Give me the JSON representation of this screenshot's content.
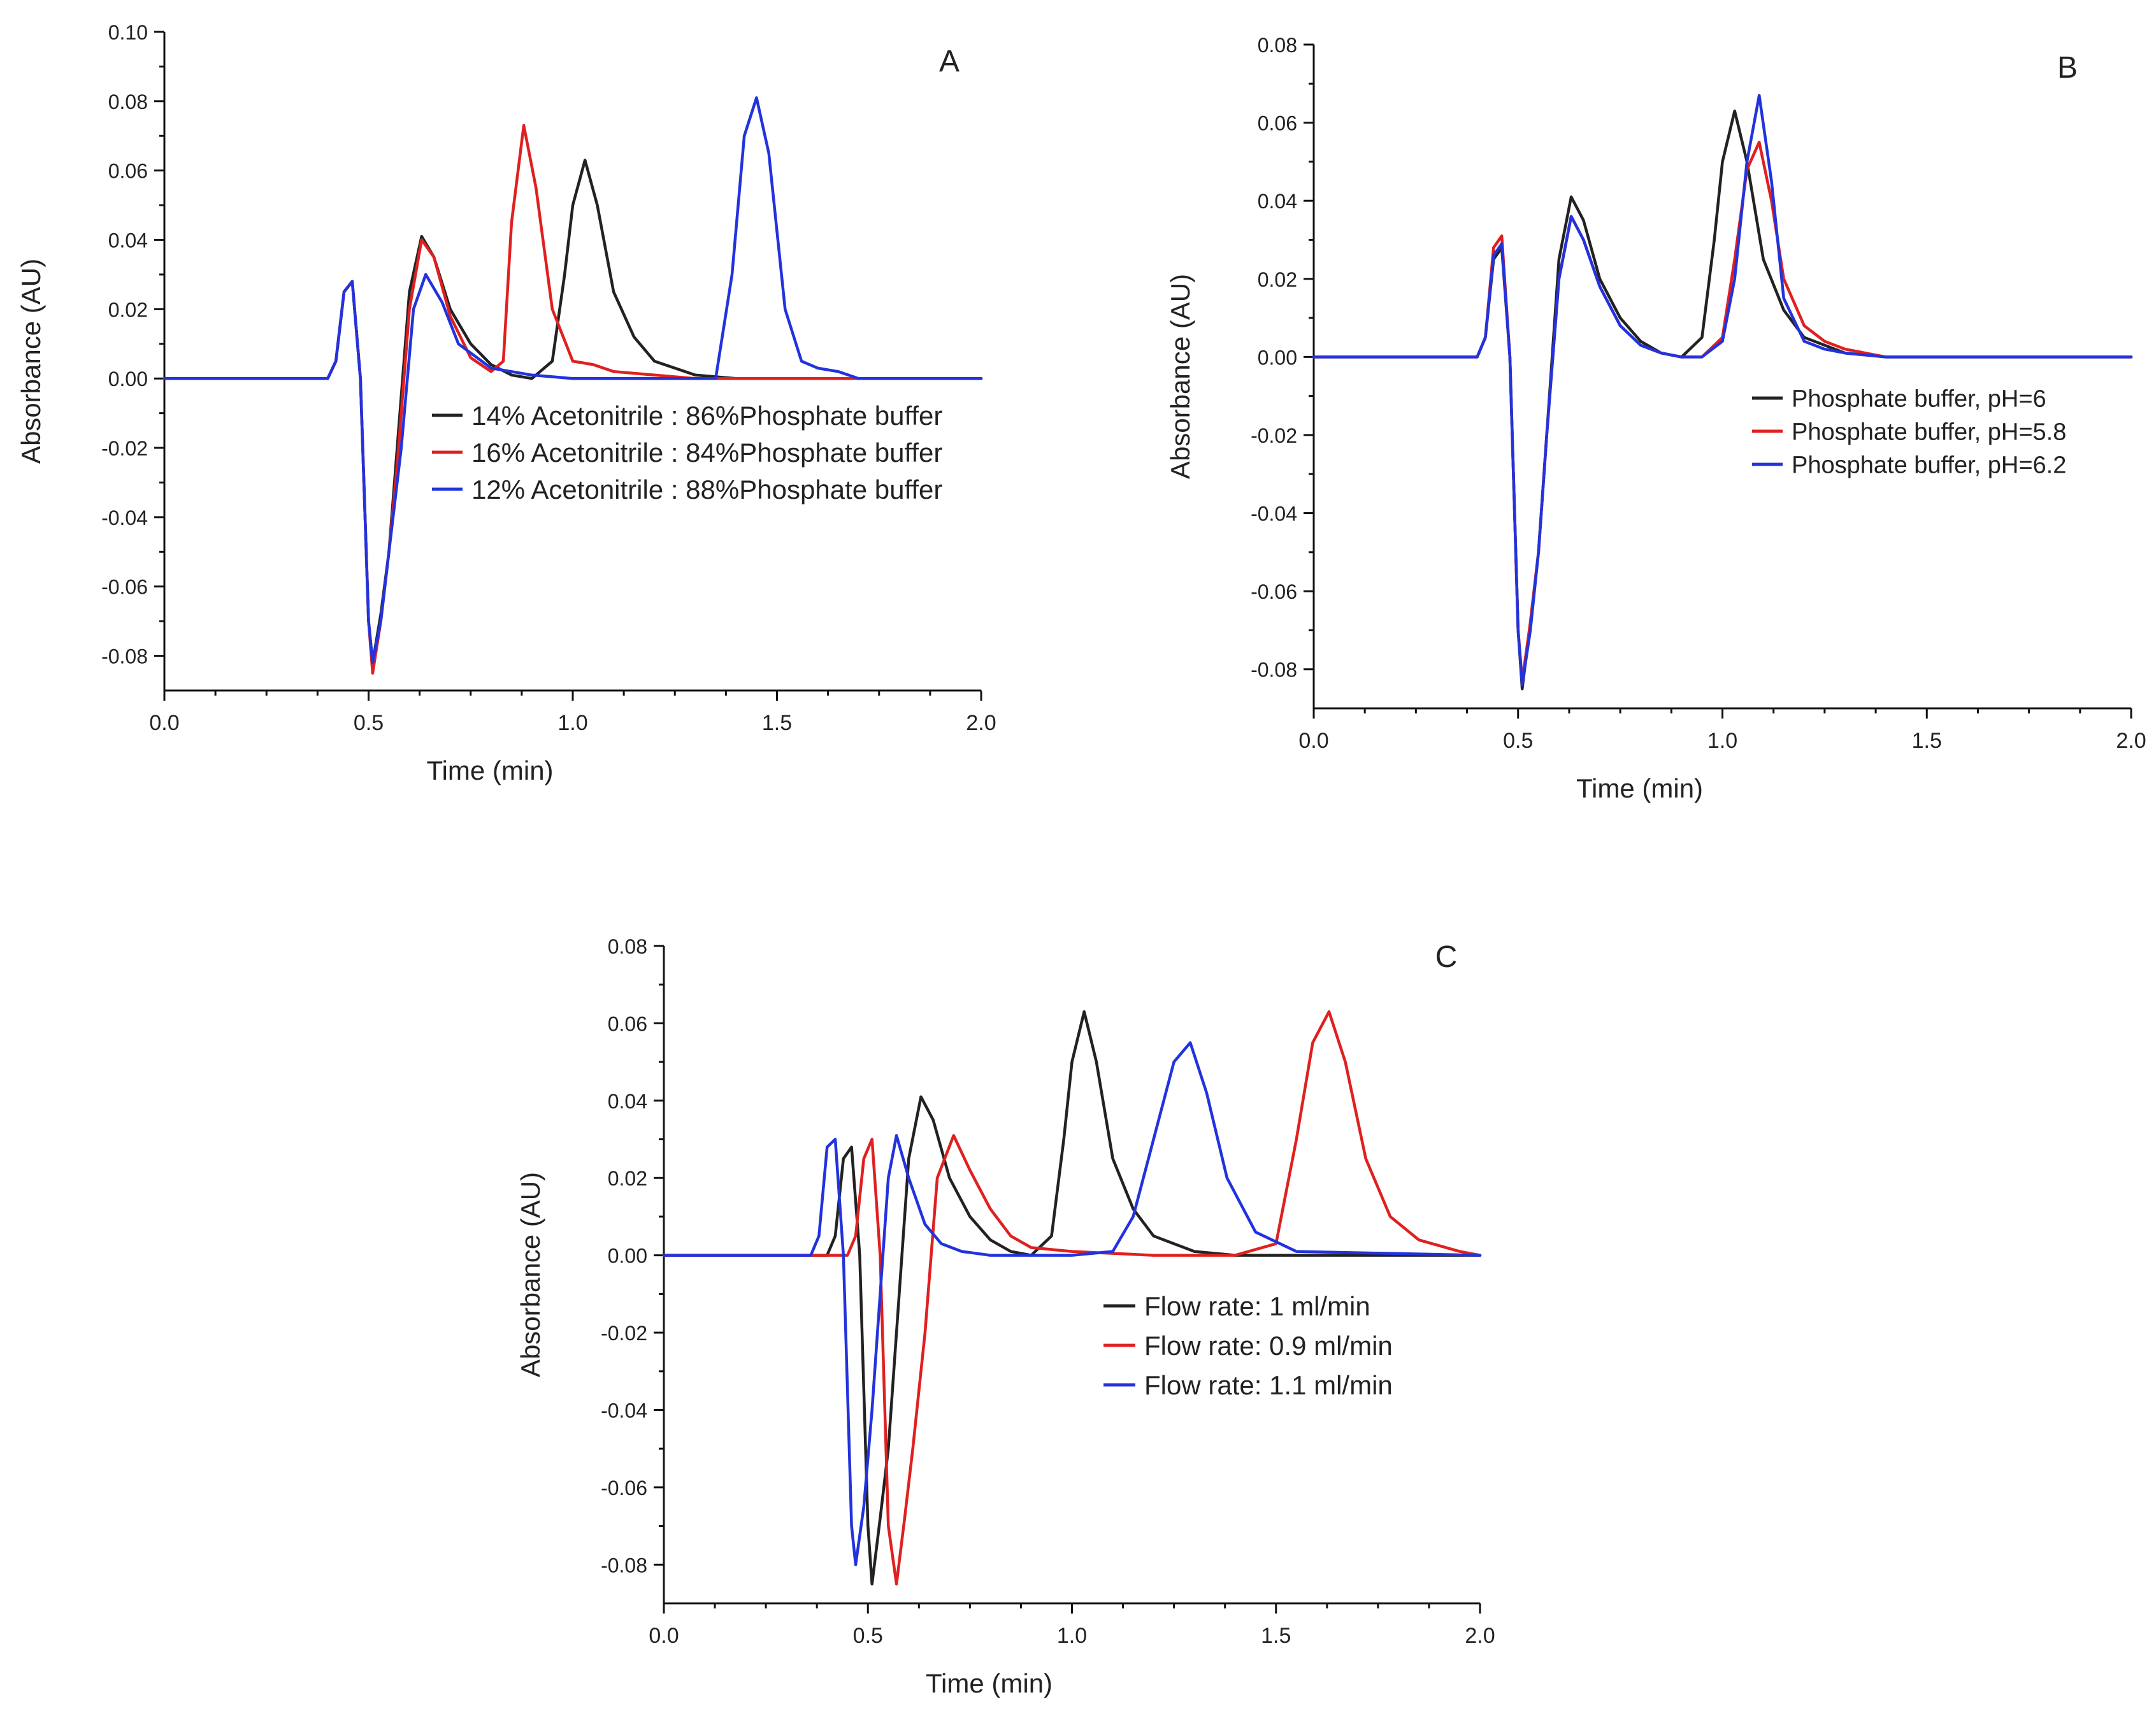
{
  "chart_data": [
    {
      "type": "line",
      "panel_label": "A",
      "xlabel": "Time (min)",
      "ylabel": "Absorbance (AU)",
      "xlim": [
        0,
        2.0
      ],
      "ylim": [
        -0.09,
        0.1
      ],
      "xticks": [
        "0.0",
        "0.5",
        "1.0",
        "1.5",
        "2.0"
      ],
      "yticks": [
        "0.10",
        "0.08",
        "0.06",
        "0.04",
        "0.02",
        "0.00",
        "-0.02",
        "-0.04",
        "-0.06",
        "-0.08"
      ],
      "ytick_values": [
        0.1,
        0.08,
        0.06,
        0.04,
        0.02,
        0.0,
        -0.02,
        -0.04,
        -0.06,
        -0.08
      ],
      "legend_position": "center-right",
      "series": [
        {
          "name": "14% Acetonitrile : 86%Phosphate buffer",
          "color": "#222222",
          "x": [
            0,
            0.4,
            0.42,
            0.44,
            0.46,
            0.48,
            0.5,
            0.51,
            0.53,
            0.55,
            0.57,
            0.6,
            0.63,
            0.66,
            0.7,
            0.75,
            0.8,
            0.85,
            0.9,
            0.95,
            0.98,
            1.0,
            1.03,
            1.06,
            1.1,
            1.15,
            1.2,
            1.3,
            1.4,
            2.0
          ],
          "y": [
            0,
            0,
            0.005,
            0.025,
            0.028,
            0.0,
            -0.07,
            -0.082,
            -0.068,
            -0.05,
            -0.02,
            0.025,
            0.041,
            0.035,
            0.02,
            0.01,
            0.004,
            0.001,
            0.0,
            0.005,
            0.03,
            0.05,
            0.063,
            0.05,
            0.025,
            0.012,
            0.005,
            0.001,
            0,
            0
          ]
        },
        {
          "name": "16% Acetonitrile : 84%Phosphate buffer",
          "color": "#e02020",
          "x": [
            0,
            0.4,
            0.42,
            0.44,
            0.46,
            0.48,
            0.5,
            0.51,
            0.53,
            0.55,
            0.57,
            0.6,
            0.63,
            0.66,
            0.7,
            0.75,
            0.8,
            0.83,
            0.85,
            0.88,
            0.91,
            0.95,
            1.0,
            1.05,
            1.1,
            1.2,
            1.3,
            2.0
          ],
          "y": [
            0,
            0,
            0.005,
            0.025,
            0.028,
            0.0,
            -0.07,
            -0.085,
            -0.07,
            -0.05,
            -0.025,
            0.02,
            0.04,
            0.035,
            0.018,
            0.006,
            0.002,
            0.005,
            0.045,
            0.073,
            0.055,
            0.02,
            0.005,
            0.004,
            0.002,
            0.001,
            0,
            0
          ]
        },
        {
          "name": "12% Acetonitrile : 88%Phosphate buffer",
          "color": "#2233dd",
          "x": [
            0,
            0.4,
            0.42,
            0.44,
            0.46,
            0.48,
            0.5,
            0.51,
            0.53,
            0.55,
            0.58,
            0.61,
            0.64,
            0.68,
            0.72,
            0.8,
            0.9,
            1.0,
            1.2,
            1.35,
            1.39,
            1.42,
            1.45,
            1.48,
            1.52,
            1.56,
            1.6,
            1.65,
            1.7,
            2.0
          ],
          "y": [
            0,
            0,
            0.005,
            0.025,
            0.028,
            0.0,
            -0.07,
            -0.082,
            -0.07,
            -0.05,
            -0.02,
            0.02,
            0.03,
            0.022,
            0.01,
            0.003,
            0.001,
            0,
            0,
            0.0,
            0.03,
            0.07,
            0.081,
            0.065,
            0.02,
            0.005,
            0.003,
            0.002,
            0,
            0
          ]
        }
      ]
    },
    {
      "type": "line",
      "panel_label": "B",
      "xlabel": "Time (min)",
      "ylabel": "Absorbance (AU)",
      "xlim": [
        0,
        2.0
      ],
      "ylim": [
        -0.09,
        0.08
      ],
      "xticks": [
        "0.0",
        "0.5",
        "1.0",
        "1.5",
        "2.0"
      ],
      "yticks": [
        "0.08",
        "0.06",
        "0.04",
        "0.02",
        "0.00",
        "-0.02",
        "-0.04",
        "-0.06",
        "-0.08"
      ],
      "ytick_values": [
        0.08,
        0.06,
        0.04,
        0.02,
        0.0,
        -0.02,
        -0.04,
        -0.06,
        -0.08
      ],
      "legend_position": "center-right",
      "series": [
        {
          "name": "Phosphate buffer, pH=6",
          "color": "#222222",
          "x": [
            0,
            0.4,
            0.42,
            0.44,
            0.46,
            0.48,
            0.5,
            0.51,
            0.53,
            0.55,
            0.57,
            0.6,
            0.63,
            0.66,
            0.7,
            0.75,
            0.8,
            0.85,
            0.9,
            0.95,
            0.98,
            1.0,
            1.03,
            1.06,
            1.1,
            1.15,
            1.2,
            1.3,
            1.4,
            2.0
          ],
          "y": [
            0,
            0,
            0.005,
            0.025,
            0.028,
            0.0,
            -0.07,
            -0.085,
            -0.068,
            -0.05,
            -0.02,
            0.025,
            0.041,
            0.035,
            0.02,
            0.01,
            0.004,
            0.001,
            0.0,
            0.005,
            0.03,
            0.05,
            0.063,
            0.05,
            0.025,
            0.012,
            0.005,
            0.001,
            0,
            0
          ]
        },
        {
          "name": "Phosphate buffer, pH=5.8",
          "color": "#e02020",
          "x": [
            0,
            0.4,
            0.42,
            0.44,
            0.46,
            0.48,
            0.5,
            0.51,
            0.53,
            0.55,
            0.57,
            0.6,
            0.63,
            0.66,
            0.7,
            0.75,
            0.8,
            0.85,
            0.9,
            0.95,
            1.0,
            1.03,
            1.06,
            1.09,
            1.12,
            1.15,
            1.2,
            1.25,
            1.3,
            1.4,
            2.0
          ],
          "y": [
            0,
            0,
            0.005,
            0.028,
            0.031,
            0.0,
            -0.07,
            -0.083,
            -0.068,
            -0.05,
            -0.02,
            0.02,
            0.036,
            0.03,
            0.018,
            0.008,
            0.003,
            0.001,
            0.0,
            0.0,
            0.005,
            0.025,
            0.048,
            0.055,
            0.04,
            0.02,
            0.008,
            0.004,
            0.002,
            0,
            0
          ]
        },
        {
          "name": "Phosphate buffer, pH=6.2",
          "color": "#2233dd",
          "x": [
            0,
            0.4,
            0.42,
            0.44,
            0.46,
            0.48,
            0.5,
            0.51,
            0.53,
            0.55,
            0.57,
            0.6,
            0.63,
            0.66,
            0.7,
            0.75,
            0.8,
            0.85,
            0.9,
            0.95,
            1.0,
            1.03,
            1.06,
            1.09,
            1.12,
            1.15,
            1.2,
            1.25,
            1.3,
            1.4,
            2.0
          ],
          "y": [
            0,
            0,
            0.005,
            0.026,
            0.029,
            0.0,
            -0.07,
            -0.084,
            -0.07,
            -0.05,
            -0.02,
            0.02,
            0.036,
            0.03,
            0.018,
            0.008,
            0.003,
            0.001,
            0.0,
            0.0,
            0.004,
            0.02,
            0.05,
            0.067,
            0.045,
            0.015,
            0.004,
            0.002,
            0.001,
            0,
            0
          ]
        }
      ]
    },
    {
      "type": "line",
      "panel_label": "C",
      "xlabel": "Time (min)",
      "ylabel": "Absorbance (AU)",
      "xlim": [
        0,
        2.0
      ],
      "ylim": [
        -0.09,
        0.08
      ],
      "xticks": [
        "0.0",
        "0.5",
        "1.0",
        "1.5",
        "2.0"
      ],
      "yticks": [
        "0.08",
        "0.06",
        "0.04",
        "0.02",
        "0.00",
        "-0.02",
        "-0.04",
        "-0.06",
        "-0.08"
      ],
      "ytick_values": [
        0.08,
        0.06,
        0.04,
        0.02,
        0.0,
        -0.02,
        -0.04,
        -0.06,
        -0.08
      ],
      "legend_position": "center-right",
      "series": [
        {
          "name": "Flow rate: 1 ml/min",
          "color": "#222222",
          "x": [
            0,
            0.4,
            0.42,
            0.44,
            0.46,
            0.48,
            0.5,
            0.51,
            0.53,
            0.55,
            0.57,
            0.6,
            0.63,
            0.66,
            0.7,
            0.75,
            0.8,
            0.85,
            0.9,
            0.95,
            0.98,
            1.0,
            1.03,
            1.06,
            1.1,
            1.15,
            1.2,
            1.3,
            1.4,
            2.0
          ],
          "y": [
            0,
            0,
            0.005,
            0.025,
            0.028,
            0.0,
            -0.07,
            -0.085,
            -0.068,
            -0.05,
            -0.02,
            0.025,
            0.041,
            0.035,
            0.02,
            0.01,
            0.004,
            0.001,
            0.0,
            0.005,
            0.03,
            0.05,
            0.063,
            0.05,
            0.025,
            0.012,
            0.005,
            0.001,
            0,
            0
          ]
        },
        {
          "name": "Flow rate: 0.9 ml/min",
          "color": "#e02020",
          "x": [
            0,
            0.45,
            0.47,
            0.49,
            0.51,
            0.53,
            0.55,
            0.57,
            0.59,
            0.61,
            0.64,
            0.67,
            0.71,
            0.75,
            0.8,
            0.85,
            0.9,
            1.0,
            1.2,
            1.4,
            1.5,
            1.55,
            1.59,
            1.63,
            1.67,
            1.72,
            1.78,
            1.85,
            1.95,
            2.0
          ],
          "y": [
            0,
            0,
            0.005,
            0.025,
            0.03,
            0.0,
            -0.07,
            -0.085,
            -0.068,
            -0.05,
            -0.02,
            0.02,
            0.031,
            0.022,
            0.012,
            0.005,
            0.002,
            0.001,
            0,
            0,
            0.003,
            0.03,
            0.055,
            0.063,
            0.05,
            0.025,
            0.01,
            0.004,
            0.001,
            0
          ]
        },
        {
          "name": "Flow rate: 1.1 ml/min",
          "color": "#2233dd",
          "x": [
            0,
            0.36,
            0.38,
            0.4,
            0.42,
            0.44,
            0.46,
            0.47,
            0.49,
            0.51,
            0.53,
            0.55,
            0.57,
            0.6,
            0.64,
            0.68,
            0.73,
            0.8,
            0.9,
            1.0,
            1.1,
            1.15,
            1.2,
            1.25,
            1.29,
            1.33,
            1.38,
            1.45,
            1.55,
            2.0
          ],
          "y": [
            0,
            0,
            0.005,
            0.028,
            0.03,
            0.0,
            -0.07,
            -0.08,
            -0.065,
            -0.04,
            -0.01,
            0.02,
            0.031,
            0.02,
            0.008,
            0.003,
            0.001,
            0,
            0,
            0,
            0.001,
            0.01,
            0.03,
            0.05,
            0.055,
            0.042,
            0.02,
            0.006,
            0.001,
            0
          ]
        }
      ]
    }
  ]
}
